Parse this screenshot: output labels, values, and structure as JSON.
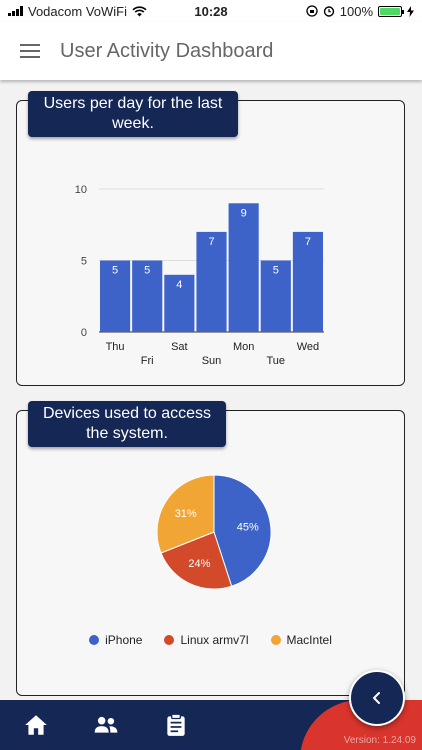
{
  "status_bar": {
    "carrier": "Vodacom VoWiFi",
    "time": "10:28",
    "battery": "100%"
  },
  "header": {
    "title": "User Activity Dashboard"
  },
  "users_card": {
    "label": "Users per day for the last week."
  },
  "devices_card": {
    "label": "Devices used to access the system."
  },
  "chart_data": [
    {
      "type": "bar",
      "categories": [
        "Thu",
        "Fri",
        "Sat",
        "Sun",
        "Mon",
        "Tue",
        "Wed"
      ],
      "values": [
        5,
        5,
        4,
        7,
        9,
        5,
        7
      ],
      "ylim": [
        0,
        10
      ],
      "yticks": [
        0,
        5,
        10
      ],
      "grid": true,
      "color": "#3d63c9"
    },
    {
      "type": "pie",
      "labels": [
        "iPhone",
        "Linux armv7l",
        "MacIntel"
      ],
      "values": [
        45,
        24,
        31
      ],
      "value_labels": [
        "45%",
        "24%",
        "31%"
      ],
      "colors": [
        "#3d63c9",
        "#d24a2a",
        "#f0a535"
      ],
      "legend": "bottom"
    }
  ],
  "footer": {
    "version": "Version: 1.24.09"
  },
  "colors": {
    "primary": "#152755",
    "accent": "#d9352c"
  },
  "icons": {
    "nav": [
      "home-icon",
      "users-icon",
      "clipboard-icon"
    ],
    "fab": "chevron-left-icon"
  }
}
